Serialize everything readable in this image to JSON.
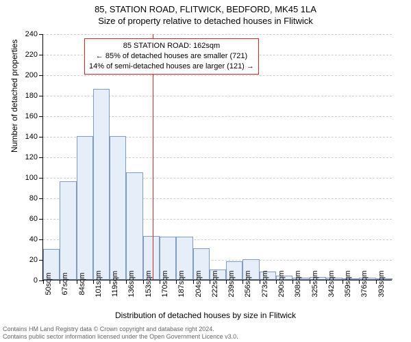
{
  "title": {
    "main": "85, STATION ROAD, FLITWICK, BEDFORD, MK45 1LA",
    "sub": "Size of property relative to detached houses in Flitwick"
  },
  "chart": {
    "type": "histogram",
    "y_axis": {
      "title": "Number of detached properties",
      "ylim": [
        0,
        240
      ],
      "tick_step": 20,
      "ticks": [
        0,
        20,
        40,
        60,
        80,
        100,
        120,
        140,
        160,
        180,
        200,
        220,
        240
      ]
    },
    "x_axis": {
      "title": "Distribution of detached houses by size in Flitwick",
      "tick_labels": [
        "50sqm",
        "67sqm",
        "84sqm",
        "101sqm",
        "119sqm",
        "136sqm",
        "153sqm",
        "170sqm",
        "187sqm",
        "204sqm",
        "222sqm",
        "239sqm",
        "256sqm",
        "273sqm",
        "290sqm",
        "308sqm",
        "325sqm",
        "342sqm",
        "359sqm",
        "376sqm",
        "393sqm"
      ]
    },
    "bars": {
      "values": [
        30,
        96,
        140,
        186,
        140,
        105,
        43,
        42,
        42,
        31,
        10,
        18,
        20,
        8,
        4,
        2,
        3,
        2,
        0,
        2,
        1
      ],
      "fill_color": "#e6eef9",
      "border_color": "#7f9cc5"
    },
    "marker": {
      "value_sqm": 162,
      "color": "#dd2222"
    },
    "callout": {
      "line1": "85 STATION ROAD: 162sqm",
      "line2": "← 85% of detached houses are smaller (721)",
      "line3": "14% of semi-detached houses are larger (121) →",
      "border_color": "#dd2222"
    },
    "grid_color": "#cccccc",
    "background_color": "#ffffff"
  },
  "footer": {
    "line1": "Contains HM Land Registry data © Crown copyright and database right 2024.",
    "line2": "Contains public sector information licensed under the Open Government Licence v3.0."
  }
}
